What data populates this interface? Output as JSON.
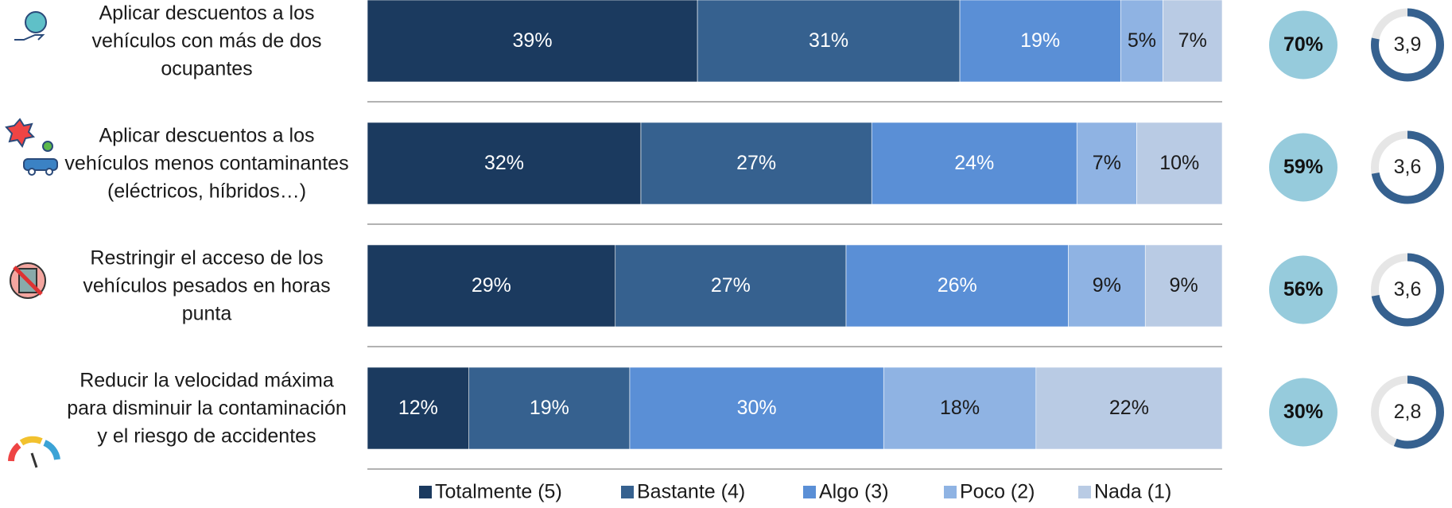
{
  "chart_data": {
    "type": "stacked-bar-horizontal",
    "categories": [
      "Aplicar descuentos a los vehículos con más de dos ocupantes",
      "Aplicar descuentos a los vehículos menos contaminantes (eléctricos, híbridos…)",
      "Restringir el acceso de los vehículos pesados en horas punta",
      "Reducir la velocidad máxima para disminuir la contaminación y el riesgo de accidentes"
    ],
    "series": [
      {
        "name": "Totalmente (5)",
        "color": "#1b3a5f",
        "values": [
          39,
          32,
          29,
          12
        ],
        "value_labels": [
          "39%",
          "32%",
          "29%",
          "12%"
        ]
      },
      {
        "name": "Bastante (4)",
        "color": "#36618f",
        "values": [
          31,
          27,
          27,
          19
        ],
        "value_labels": [
          "31%",
          "27%",
          "27%",
          "19%"
        ]
      },
      {
        "name": "Algo (3)",
        "color": "#5a8fd6",
        "values": [
          19,
          24,
          26,
          30
        ],
        "value_labels": [
          "19%",
          "24%",
          "26%",
          "30%"
        ]
      },
      {
        "name": "Poco (2)",
        "color": "#8fb3e3",
        "values": [
          5,
          7,
          9,
          18
        ],
        "value_labels": [
          "5%",
          "7%",
          "9%",
          "18%"
        ]
      },
      {
        "name": "Nada (1)",
        "color": "#b9cbe4",
        "values": [
          7,
          10,
          9,
          22
        ],
        "value_labels": [
          "7%",
          "10%",
          "9%",
          "22%"
        ]
      }
    ],
    "top_two": {
      "color": "#96cbdc",
      "values": [
        70,
        59,
        56,
        30
      ],
      "value_labels": [
        "70%",
        "59%",
        "56%",
        "30%"
      ]
    },
    "scores": {
      "color": "#36618f",
      "lim": [
        0,
        5
      ],
      "values": [
        3.9,
        3.6,
        3.6,
        2.8
      ],
      "value_labels": [
        "3,9",
        "3,6",
        "3,6",
        "2,8"
      ]
    },
    "legend": "bottom"
  }
}
